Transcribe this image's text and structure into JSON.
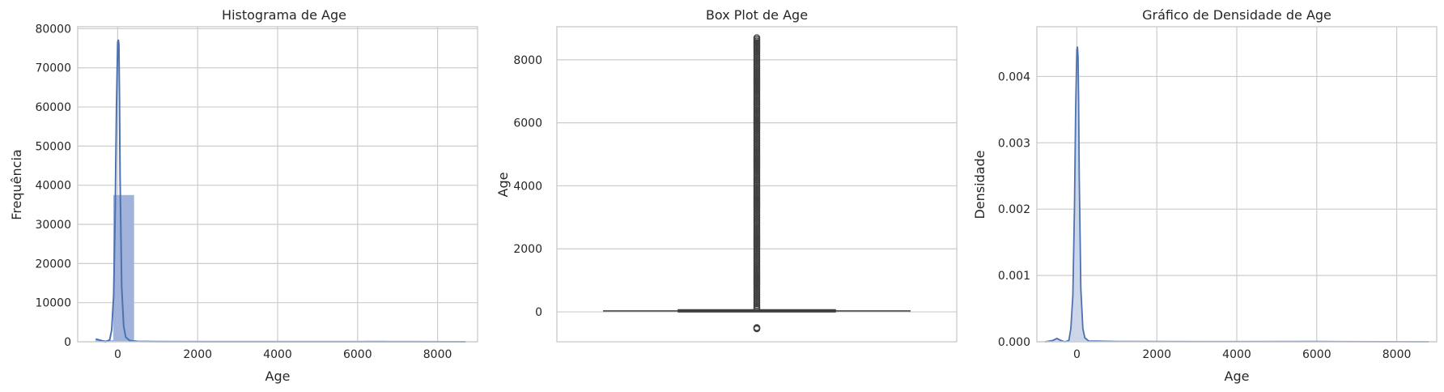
{
  "colors": {
    "primary": "#4c72b0",
    "bar_fill": "#a1b3db",
    "box_dark": "#3f3f3f",
    "grid": "#cccccc",
    "density_fill": "#cdd6e9"
  },
  "chart_data": [
    {
      "type": "bar",
      "title": "Histograma de Age",
      "xlabel": "Age",
      "ylabel": "Frequência",
      "xlim": [
        -1000,
        9000
      ],
      "ylim": [
        0,
        80500
      ],
      "xticks": [
        "0",
        "2000",
        "4000",
        "6000",
        "8000"
      ],
      "yticks": [
        "0",
        "10000",
        "20000",
        "30000",
        "40000",
        "50000",
        "60000",
        "70000",
        "80000"
      ],
      "grid": true,
      "bins": [
        {
          "x0": -550,
          "x1": -100,
          "count": 300
        },
        {
          "x0": -100,
          "x1": 400,
          "count": 37400
        },
        {
          "x0": 400,
          "x1": 6200,
          "count": 80
        },
        {
          "x0": 6200,
          "x1": 6700,
          "count": 150
        },
        {
          "x0": 6700,
          "x1": 8700,
          "count": 50
        }
      ],
      "kde": {
        "x": [
          -550,
          -400,
          -300,
          -200,
          -150,
          -100,
          -60,
          -30,
          0,
          15,
          30,
          45,
          60,
          100,
          150,
          200,
          300,
          500,
          1000,
          3000,
          6000,
          8700
        ],
        "y": [
          700,
          300,
          0,
          500,
          3000,
          12000,
          35000,
          60000,
          76500,
          77200,
          76000,
          62000,
          42000,
          14000,
          4000,
          1200,
          300,
          100,
          40,
          20,
          30,
          0
        ]
      }
    },
    {
      "type": "box",
      "title": "Box Plot de Age",
      "xlabel": "",
      "ylabel": "Age",
      "ylim": [
        -950,
        9050
      ],
      "yticks": [
        "0",
        "2000",
        "4000",
        "6000",
        "8000"
      ],
      "grid": true,
      "box": {
        "q1": 25,
        "median": 30,
        "q3": 40,
        "whisker_low": -10,
        "whisker_high": 80
      },
      "outliers_low": [
        -500,
        -520,
        -540
      ],
      "outliers_high_range": [
        100,
        8700
      ]
    },
    {
      "type": "area",
      "title": "Gráfico de Densidade de Age",
      "xlabel": "Age",
      "ylabel": "Densidade",
      "xlim": [
        -1000,
        9000
      ],
      "ylim": [
        0,
        0.00475
      ],
      "xticks": [
        "0",
        "2000",
        "4000",
        "6000",
        "8000"
      ],
      "yticks": [
        "0.000",
        "0.001",
        "0.002",
        "0.003",
        "0.004"
      ],
      "grid": true,
      "density": {
        "x": [
          -800,
          -600,
          -500,
          -400,
          -300,
          -200,
          -150,
          -100,
          -60,
          -30,
          0,
          15,
          30,
          45,
          60,
          100,
          150,
          200,
          300,
          500,
          1000,
          3000,
          6000,
          8800
        ],
        "y": [
          0.0,
          2e-05,
          5e-05,
          2e-05,
          0.0,
          2e-05,
          0.0002,
          0.0007,
          0.002,
          0.0035,
          0.0044,
          0.00445,
          0.0043,
          0.0036,
          0.0025,
          0.0008,
          0.0002,
          6e-05,
          1e-05,
          1e-05,
          5e-06,
          3e-06,
          4e-06,
          0.0
        ]
      }
    }
  ]
}
